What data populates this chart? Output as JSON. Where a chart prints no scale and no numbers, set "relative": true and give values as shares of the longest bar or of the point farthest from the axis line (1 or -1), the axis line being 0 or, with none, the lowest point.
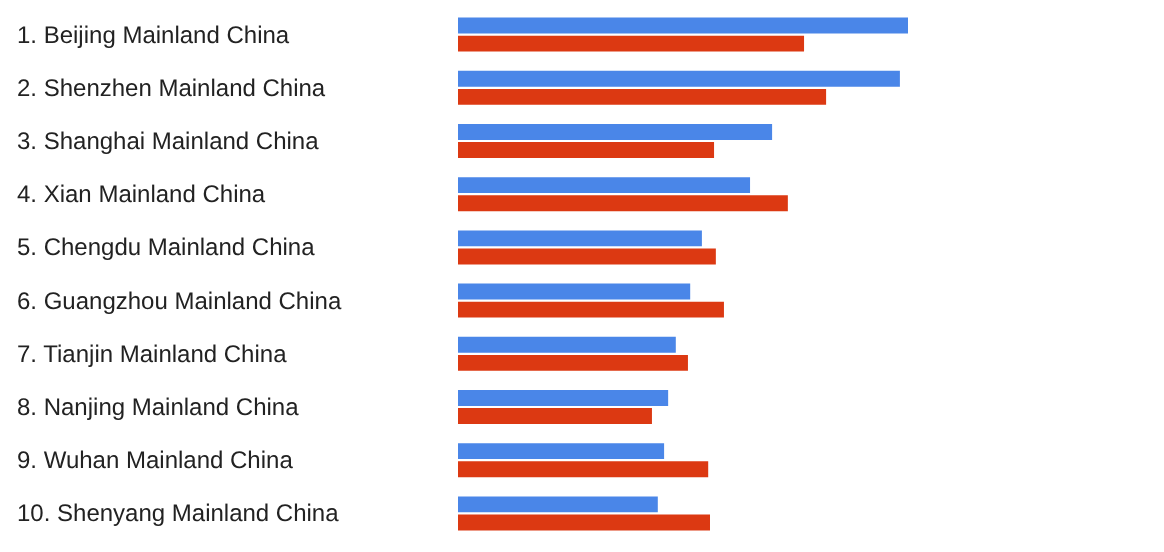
{
  "chart_data": {
    "type": "bar",
    "orientation": "horizontal",
    "relative": true,
    "categories": [
      "1. Beijing Mainland China",
      "2. Shenzhen Mainland China",
      "3. Shanghai Mainland China",
      "4. Xian Mainland China",
      "5. Chengdu Mainland China",
      "6. Guangzhou Mainland China",
      "7. Tianjin Mainland China",
      "8. Nanjing Mainland China",
      "9. Wuhan Mainland China",
      "10. Shenyang Mainland China"
    ],
    "series": [
      {
        "color": "#4a86e8",
        "values": [
          1,
          0.982,
          0.698,
          0.649,
          0.542,
          0.516,
          0.484,
          0.467,
          0.458,
          0.444
        ]
      },
      {
        "color": "#dc3912",
        "values": [
          0.769,
          0.818,
          0.569,
          0.733,
          0.573,
          0.591,
          0.511,
          0.431,
          0.556,
          0.56
        ]
      }
    ]
  }
}
